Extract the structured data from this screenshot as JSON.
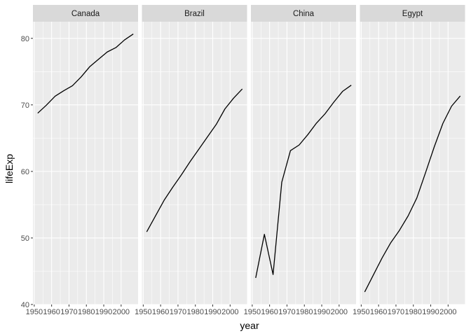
{
  "chart_data": {
    "type": "line",
    "layout": "facet-wrap",
    "xlabel": "year",
    "ylabel": "lifeExp",
    "xlim": [
      1949.25,
      2009.75
    ],
    "ylim": [
      40,
      82.5
    ],
    "x_ticks": [
      1950,
      1960,
      1970,
      1980,
      1990,
      2000
    ],
    "x_tick_labels": [
      "1950",
      "1960",
      "1970",
      "1980",
      "1990",
      "2000"
    ],
    "y_ticks": [
      40,
      50,
      60,
      70,
      80
    ],
    "y_tick_labels": [
      "40",
      "50",
      "60",
      "70",
      "80"
    ],
    "grid": true,
    "line_color": "#000000",
    "panel_background": "#ebebeb",
    "strip_background": "#d9d9d9",
    "x": [
      1952,
      1957,
      1962,
      1967,
      1972,
      1977,
      1982,
      1987,
      1992,
      1997,
      2002,
      2007
    ],
    "facets": [
      {
        "label": "Canada",
        "values": [
          68.75,
          69.96,
          71.3,
          72.13,
          72.88,
          74.21,
          75.76,
          76.86,
          77.95,
          78.61,
          79.77,
          80.65
        ]
      },
      {
        "label": "Brazil",
        "values": [
          50.92,
          53.29,
          55.66,
          57.63,
          59.5,
          61.49,
          63.34,
          65.21,
          67.06,
          69.39,
          71.01,
          72.39
        ]
      },
      {
        "label": "China",
        "values": [
          44.0,
          50.55,
          44.5,
          58.38,
          63.12,
          63.97,
          65.53,
          67.27,
          68.69,
          70.43,
          72.03,
          72.96
        ]
      },
      {
        "label": "Egypt",
        "values": [
          41.89,
          44.44,
          46.99,
          49.29,
          51.14,
          53.32,
          56.01,
          59.8,
          63.67,
          67.22,
          69.81,
          71.34
        ]
      }
    ]
  }
}
